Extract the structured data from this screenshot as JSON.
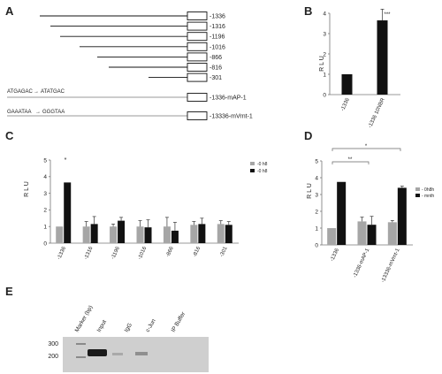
{
  "panels": {
    "A": {
      "letter": "A",
      "constructs": [
        "-1336",
        "-1316",
        "-1196",
        "-1016",
        "-866",
        "-816",
        "-301",
        "-1336-mAP-1",
        "-13336-mVrnt-1"
      ],
      "mut_ap1": {
        "wt": "ATGAGAC",
        "mut": "ATATGAC"
      },
      "mut_vrnt": {
        "wt": "GAAATAA",
        "mut": "GGGTAA"
      }
    },
    "B": {
      "letter": "B",
      "ylabel": "R L U",
      "yticks": [
        "0",
        "1",
        "2",
        "3",
        "4"
      ],
      "sig": "***"
    },
    "C": {
      "letter": "C",
      "ylabel": "R L U",
      "yticks": [
        "0",
        "1",
        "2",
        "3",
        "4",
        "5"
      ],
      "legend": [
        "-0 h8",
        "-0 h8"
      ],
      "sig": "*"
    },
    "D": {
      "letter": "D",
      "ylabel": "R L U",
      "yticks": [
        "0",
        "1",
        "2",
        "3",
        "4",
        "5"
      ],
      "legend": [
        "- 0h8h",
        "- mnth"
      ],
      "sig_bracket1": "**",
      "sig_bracket2": "*"
    },
    "E": {
      "letter": "E",
      "lanes": [
        "Marker (bp)",
        "Input",
        "IgG",
        "c-Jun",
        "IP Buffer"
      ],
      "markers": [
        "300",
        "200"
      ]
    }
  },
  "chart_data": [
    {
      "type": "bar",
      "categories": [
        "-1336",
        "-1336 10NBR"
      ],
      "series": [
        {
          "values": [
            1.0,
            3.65
          ]
        }
      ],
      "errors": [
        0,
        0.55
      ],
      "ylim": [
        0,
        4
      ],
      "ylabel": "R L U"
    },
    {
      "type": "bar",
      "categories": [
        "-1336",
        "-1316",
        "-1196",
        "-1016",
        "-866",
        "-816",
        "-301"
      ],
      "series": [
        {
          "name": "-0 h8",
          "values": [
            1.0,
            1.0,
            1.0,
            1.0,
            1.0,
            1.1,
            1.15
          ],
          "errors": [
            0,
            0.3,
            0.15,
            0.35,
            0.55,
            0.2,
            0.2
          ],
          "color": "#a6a6a6"
        },
        {
          "name": "-0 h8",
          "values": [
            3.65,
            1.15,
            1.35,
            0.95,
            0.75,
            1.15,
            1.1
          ],
          "errors": [
            0,
            0.45,
            0.2,
            0.45,
            0.5,
            0.35,
            0.2
          ],
          "color": "#111111"
        }
      ],
      "ylim": [
        0,
        5
      ],
      "ylabel": "R L U"
    },
    {
      "type": "bar",
      "categories": [
        "-1336",
        "-1336-mAP-1",
        "-13336-mVrnt-1"
      ],
      "series": [
        {
          "name": "- 0h8h",
          "values": [
            1.0,
            1.4,
            1.35
          ],
          "errors": [
            0,
            0.25,
            0.1
          ],
          "color": "#a6a6a6"
        },
        {
          "name": "- mnth",
          "values": [
            3.75,
            1.2,
            3.4
          ],
          "errors": [
            0,
            0.5,
            0.1
          ],
          "color": "#111111"
        }
      ],
      "ylim": [
        0,
        5
      ],
      "ylabel": "R L U"
    }
  ]
}
